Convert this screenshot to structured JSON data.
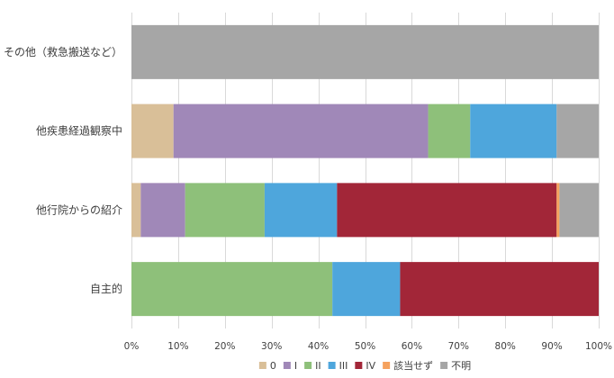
{
  "chart_data": {
    "type": "bar",
    "orientation": "horizontal",
    "stacked": "percent",
    "categories": [
      "その他（救急搬送など）",
      "他疾患経過観察中",
      "他行院からの紹介",
      "自主的"
    ],
    "series": [
      {
        "name": "0",
        "color": "#d9bf98",
        "values": [
          0,
          9,
          2,
          0
        ]
      },
      {
        "name": "I",
        "color": "#a088b8",
        "values": [
          0,
          54.5,
          9.5,
          0
        ]
      },
      {
        "name": "II",
        "color": "#8ec07a",
        "values": [
          0,
          9,
          17,
          43
        ]
      },
      {
        "name": "III",
        "color": "#4ea6dc",
        "values": [
          0,
          18.5,
          15.5,
          14.5
        ]
      },
      {
        "name": "IV",
        "color": "#a22638",
        "values": [
          0,
          0,
          47,
          42.5
        ]
      },
      {
        "name": "該当せず",
        "color": "#f5a25e",
        "values": [
          0,
          0,
          0.6,
          0
        ]
      },
      {
        "name": "不明",
        "color": "#a6a6a6",
        "values": [
          100,
          9,
          8.4,
          0
        ]
      }
    ],
    "xlim": [
      0,
      100
    ],
    "xticks": [
      "0%",
      "10%",
      "20%",
      "30%",
      "40%",
      "50%",
      "60%",
      "70%",
      "80%",
      "90%",
      "100%"
    ],
    "grid": true,
    "legend_position": "bottom"
  }
}
